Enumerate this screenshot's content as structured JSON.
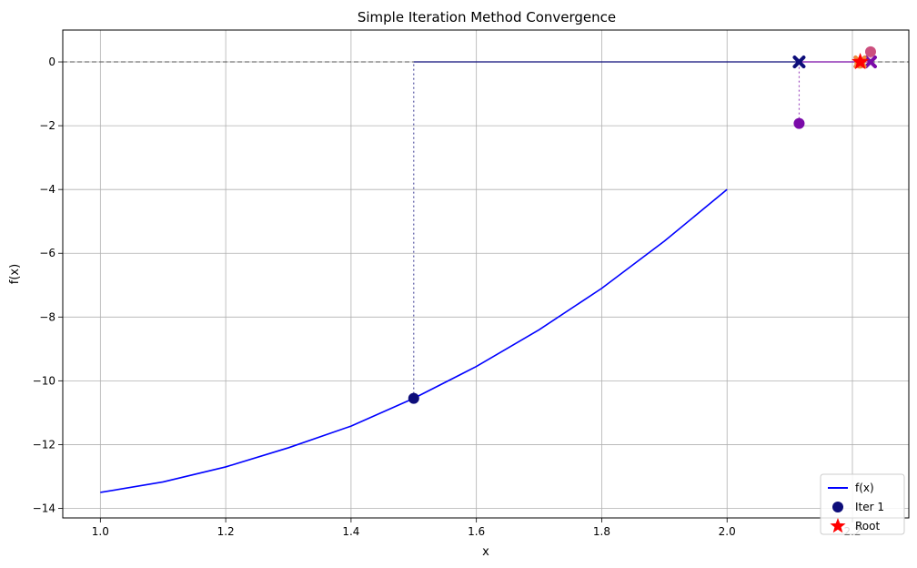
{
  "chart_data": {
    "type": "line",
    "title": "Simple Iteration Method Convergence",
    "xlabel": "x",
    "ylabel": "f(x)",
    "xlim": [
      0.94,
      2.29
    ],
    "ylim": [
      -14.3,
      1.0
    ],
    "x_ticks": [
      1.0,
      1.2,
      1.4,
      1.6,
      1.8,
      2.0,
      2.2
    ],
    "x_tick_labels": [
      "1.0",
      "1.2",
      "1.4",
      "1.6",
      "1.8",
      "2.0",
      "2.2"
    ],
    "y_ticks": [
      0,
      -2,
      -4,
      -6,
      -8,
      -10,
      -12,
      -14
    ],
    "y_tick_labels": [
      "0",
      "−2",
      "−4",
      "−6",
      "−8",
      "−10",
      "−12",
      "−14"
    ],
    "grid": true,
    "legend_position": "bottom-right",
    "curve": {
      "name": "f(x)",
      "color": "#0000ff",
      "x": [
        1.0,
        1.1,
        1.2,
        1.3,
        1.4,
        1.5,
        1.6,
        1.7,
        1.8,
        1.9,
        2.0
      ],
      "y": [
        -13.5,
        -13.17,
        -12.7,
        -12.1,
        -11.42,
        -10.55,
        -9.55,
        -8.4,
        -7.1,
        -5.62,
        -4.0
      ]
    },
    "zero_line": {
      "y": 0,
      "color": "#555555"
    },
    "iterations": [
      {
        "name": "Iter 1",
        "x": 1.5,
        "fx": -10.55,
        "x_next": 2.115,
        "color": "#0d0d7a"
      },
      {
        "name": "",
        "x": 2.115,
        "fx": -1.93,
        "x_next": 2.229,
        "color": "#7a0aa8"
      },
      {
        "name": "",
        "x": 2.229,
        "fx": 0.32,
        "x_next": 2.212,
        "color": "#cc4f7e"
      },
      {
        "name": "",
        "x": 2.212,
        "fx": -0.04,
        "x_next": 2.2125,
        "color": "#f08c38"
      }
    ],
    "root": {
      "name": "Root",
      "x": 2.2125,
      "y": 0,
      "color": "#ff0000"
    },
    "legend": [
      {
        "label": "f(x)",
        "kind": "line",
        "color": "#0000ff"
      },
      {
        "label": "Iter 1",
        "kind": "circle",
        "color": "#0d0d7a"
      },
      {
        "label": "Root",
        "kind": "star",
        "color": "#ff0000"
      }
    ]
  }
}
